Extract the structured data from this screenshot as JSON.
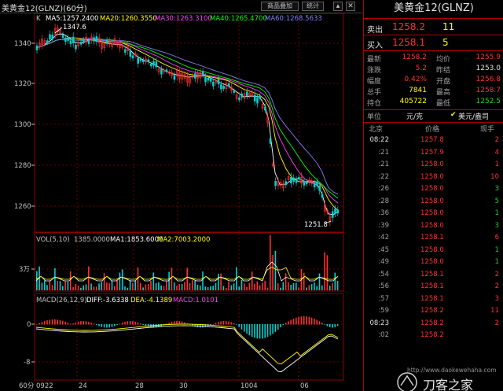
{
  "window": {
    "title": "美黄金12(GLNZ)(60分)",
    "buttons": [
      "商品叠加",
      "统计"
    ]
  },
  "price_legend": {
    "k_label": "K",
    "ma5": "MA5:1257.2400",
    "ma20": "MA20:1260.3550",
    "ma30": "MA30:1263.3100",
    "ma40": "MA40:1265.4700",
    "ma60": "MA60:1268.5633"
  },
  "vol_legend": {
    "label": "VOL(5,10)",
    "vol": "1385.0000",
    "ma1": "MA1:1853.6000",
    "ma2": "MA2:7003.2000"
  },
  "macd_legend": {
    "label": "MACD(26,12,9)",
    "diff": "DIFF:-3.6338",
    "dea": "DEA:-4.1389",
    "macd": "MACD:1.0101"
  },
  "colors": {
    "up": "#ff3030",
    "down": "#00d0d0",
    "ma5": "#ffffff",
    "ma20": "#ffff00",
    "ma30": "#ff40ff",
    "ma40": "#00ff00",
    "ma60": "#8080ff",
    "grid": "#8b0000"
  },
  "chart_data": {
    "type": "candlestick",
    "price_axis": {
      "ticks": [
        "1340",
        "1320",
        "1300",
        "1280",
        "1260"
      ],
      "ylim": [
        1250,
        1352
      ]
    },
    "annotations": {
      "high": "1347.6",
      "low": "1251.8"
    },
    "vol_axis": {
      "ticks": [
        "3万"
      ]
    },
    "macd_axis": {
      "ticks": [
        "0",
        "-8"
      ]
    },
    "x_ticks": [
      "60分",
      "0922",
      "24",
      "28",
      "30",
      "1004",
      "06"
    ],
    "ma_lines": [
      "MA5",
      "MA20",
      "MA30",
      "MA40",
      "MA60"
    ]
  },
  "panel": {
    "title": "美黄金12(GLNZ)",
    "sell": {
      "label": "卖出",
      "price": "1258.2",
      "qty": "11"
    },
    "buy": {
      "label": "买入",
      "price": "1258.1",
      "qty": "5"
    },
    "stats": [
      {
        "l1": "最新",
        "v1": "1258.2",
        "c1": "red",
        "l2": "均价",
        "v2": "1255.9",
        "c2": "red"
      },
      {
        "l1": "涨跌",
        "v1": "5.2",
        "c1": "red",
        "l2": "昨结",
        "v2": "1253.0",
        "c2": "white"
      },
      {
        "l1": "幅度",
        "v1": "0.42%",
        "c1": "red",
        "l2": "开盘",
        "v2": "1256.8",
        "c2": "red"
      },
      {
        "l1": "总手",
        "v1": "7841",
        "c1": "yellow",
        "l2": "最高",
        "v2": "1258.7",
        "c2": "red"
      },
      {
        "l1": "持仓",
        "v1": "405722",
        "c1": "yellow",
        "l2": "最低",
        "v2": "1252.5",
        "c2": "green"
      }
    ],
    "unit": {
      "label": "单位",
      "opt1": "元/克",
      "check": "✔",
      "opt2": "美元/盎司"
    },
    "ticks_header": {
      "city": "北京",
      "price": "价格",
      "qty": "现手"
    },
    "ticks": [
      {
        "t": "08:22",
        "p": "1257.8",
        "q": "2",
        "qc": "red"
      },
      {
        "t": ":21",
        "p": "1257.9",
        "q": "4",
        "qc": "red"
      },
      {
        "t": ":21",
        "p": "1258.0",
        "q": "1",
        "qc": "red"
      },
      {
        "t": ":22",
        "p": "1258.0",
        "q": "10",
        "qc": "red"
      },
      {
        "t": ":26",
        "p": "1258.0",
        "q": "3",
        "qc": "green"
      },
      {
        "t": ":28",
        "p": "1258.0",
        "q": "5",
        "qc": "green"
      },
      {
        "t": ":36",
        "p": "1258.0",
        "q": "1",
        "qc": "green"
      },
      {
        "t": ":39",
        "p": "1258.0",
        "q": "3",
        "qc": "green"
      },
      {
        "t": ":42",
        "p": "1258.1",
        "q": "6",
        "qc": "red"
      },
      {
        "t": ":45",
        "p": "1258.0",
        "q": "1",
        "qc": "green"
      },
      {
        "t": ":49",
        "p": "1258.0",
        "q": "1",
        "qc": "green"
      },
      {
        "t": ":54",
        "p": "1258.1",
        "q": "2",
        "qc": "red"
      },
      {
        "t": ":56",
        "p": "1258.1",
        "q": "2",
        "qc": "red"
      },
      {
        "t": ":57",
        "p": "1258.1",
        "q": "3",
        "qc": "red"
      },
      {
        "t": ":59",
        "p": "1258.2",
        "q": "11",
        "qc": "red"
      },
      {
        "t": "08:23",
        "p": "1258.2",
        "q": "2",
        "qc": "red"
      },
      {
        "t": ":02",
        "p": "1258.2",
        "q": "",
        "qc": "red"
      }
    ]
  },
  "watermark": {
    "url": "http://www.daokewehaha.com",
    "name": "刀客之家"
  }
}
